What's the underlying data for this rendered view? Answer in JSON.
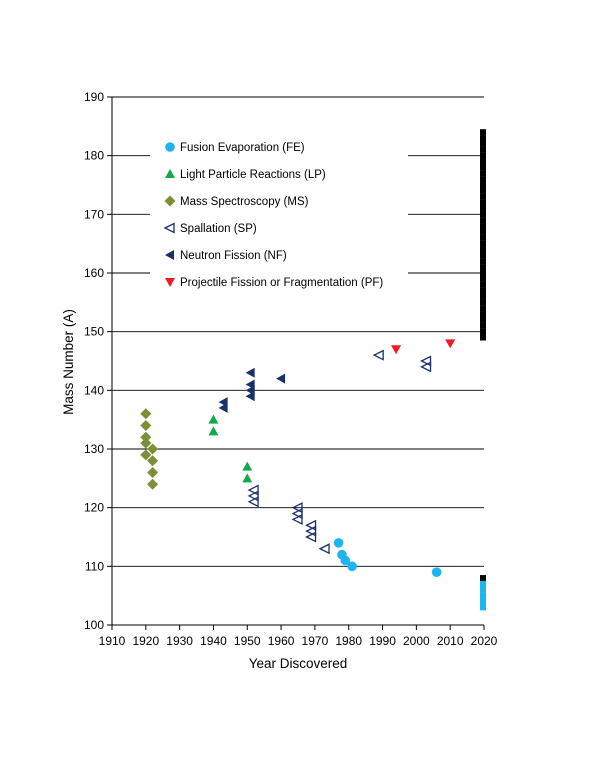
{
  "chart_data": {
    "type": "scatter",
    "xlabel": "Year Discovered",
    "ylabel": "Mass Number (A)",
    "xlim": [
      1910,
      2020
    ],
    "ylim": [
      100,
      190
    ],
    "xticks": [
      1910,
      1920,
      1930,
      1940,
      1950,
      1960,
      1970,
      1980,
      1990,
      2000,
      2010,
      2020
    ],
    "yticks": [
      100,
      110,
      120,
      130,
      140,
      150,
      160,
      170,
      180,
      190
    ],
    "grid": "horizontal",
    "legend_position": "top-left",
    "series": [
      {
        "name": "Fusion Evaporation (FE)",
        "marker": "circle",
        "color": "#1EB4EE",
        "points": [
          [
            1977,
            114
          ],
          [
            1978,
            112
          ],
          [
            1979,
            111
          ],
          [
            1981,
            110
          ],
          [
            2006,
            109
          ]
        ]
      },
      {
        "name": "Light Particle Reactions (LP)",
        "marker": "triangle-up",
        "color": "#12A84E",
        "points": [
          [
            1940,
            135
          ],
          [
            1940,
            133
          ],
          [
            1950,
            127
          ],
          [
            1950,
            125
          ]
        ]
      },
      {
        "name": "Mass Spectroscopy (MS)",
        "marker": "diamond",
        "color": "#7D8F36",
        "points": [
          [
            1920,
            136
          ],
          [
            1920,
            134
          ],
          [
            1920,
            132
          ],
          [
            1920,
            131
          ],
          [
            1920,
            129
          ],
          [
            1922,
            130
          ],
          [
            1922,
            128
          ],
          [
            1922,
            126
          ],
          [
            1922,
            124
          ]
        ]
      },
      {
        "name": "Spallation (SP)",
        "marker": "triangle-left-open",
        "color": "#1A2F6B",
        "points": [
          [
            1952,
            123
          ],
          [
            1952,
            122
          ],
          [
            1952,
            121
          ],
          [
            1965,
            120
          ],
          [
            1965,
            119
          ],
          [
            1965,
            118
          ],
          [
            1969,
            117
          ],
          [
            1969,
            116
          ],
          [
            1969,
            115
          ],
          [
            1973,
            113
          ],
          [
            1989,
            146
          ],
          [
            2003,
            145
          ],
          [
            2003,
            144
          ]
        ]
      },
      {
        "name": "Neutron Fission (NF)",
        "marker": "triangle-left",
        "color": "#1A2F6B",
        "points": [
          [
            1943,
            138
          ],
          [
            1943,
            137
          ],
          [
            1951,
            143
          ],
          [
            1951,
            141
          ],
          [
            1951,
            140
          ],
          [
            1951,
            139
          ],
          [
            1960,
            142
          ]
        ]
      },
      {
        "name": "Projectile Fission or Fragmentation (PF)",
        "marker": "triangle-down",
        "color": "#EE1C24",
        "points": [
          [
            1994,
            147
          ],
          [
            2010,
            148
          ]
        ]
      }
    ],
    "edge_bands": [
      {
        "color": "#000000",
        "from": 149,
        "to": 184
      },
      {
        "color": "#000000",
        "from": 108,
        "to": 108
      },
      {
        "color": "#1EB4EE",
        "from": 103,
        "to": 107
      }
    ]
  }
}
